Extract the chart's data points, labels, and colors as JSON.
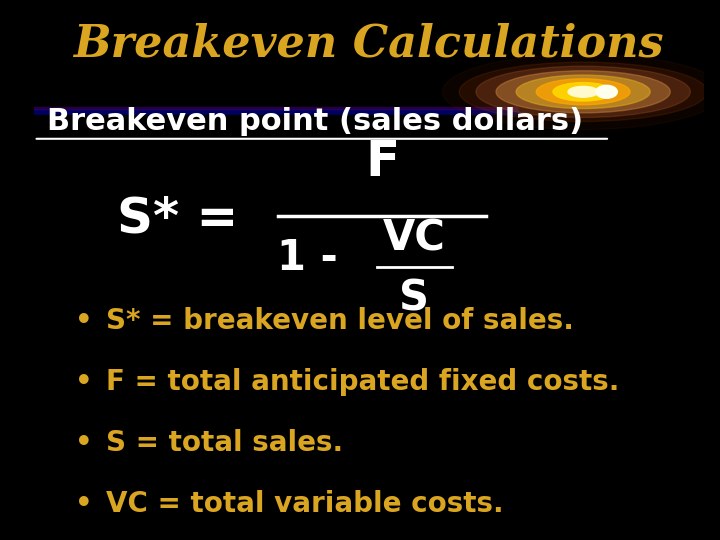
{
  "background_color": "#000000",
  "title": "Breakeven Calculations",
  "title_color": "#DAA520",
  "title_fontsize": 32,
  "title_style": "italic",
  "subtitle": "Breakeven point (sales dollars)",
  "subtitle_color": "#FFFFFF",
  "subtitle_fontsize": 22,
  "formula_color": "#FFFFFF",
  "bullet_color": "#DAA520",
  "bullet_fontsize": 20,
  "bullets": [
    "S* = breakeven level of sales.",
    "F = total anticipated fixed costs.",
    "S = total sales.",
    "VC = total variable costs."
  ]
}
